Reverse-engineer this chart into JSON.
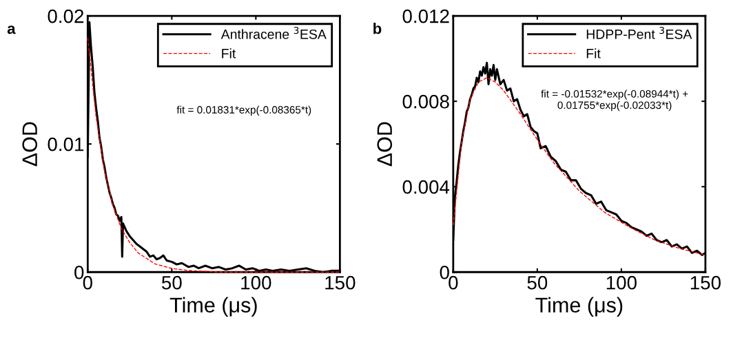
{
  "chart_data": [
    {
      "type": "line",
      "title": "a",
      "xlabel": "Time (μs)",
      "ylabel": "ΔOD",
      "xlim": [
        0,
        150
      ],
      "xticks": [
        0,
        50,
        100,
        150
      ],
      "ylim": [
        0,
        0.02
      ],
      "yticks": [
        0,
        0.01,
        0.02
      ],
      "legend": "top right",
      "grid": false,
      "annotations": [
        "fit = 0.01831*exp(-0.08365*t)"
      ],
      "series": [
        {
          "name": "Anthracene $^{3}$ESA",
          "color": "#000000",
          "line_style": "solid",
          "x": [
            0,
            1,
            2,
            3,
            4,
            5,
            6,
            7,
            8,
            9,
            10,
            11,
            12,
            13,
            14,
            15,
            16,
            17,
            18,
            19,
            20,
            20.5,
            21,
            23,
            25,
            27,
            29,
            31,
            33,
            35,
            37,
            39,
            41,
            43,
            45,
            47,
            50,
            53,
            56,
            60,
            63,
            66,
            70,
            74,
            78,
            82,
            86,
            90,
            94,
            98,
            102,
            106,
            110,
            115,
            120,
            125,
            130,
            135,
            140,
            145,
            150
          ],
          "values": [
            0.009,
            0.0195,
            0.0175,
            0.016,
            0.014,
            0.0128,
            0.0118,
            0.0105,
            0.0098,
            0.0088,
            0.0082,
            0.0074,
            0.0068,
            0.0062,
            0.0058,
            0.0053,
            0.005,
            0.0045,
            0.0044,
            0.004,
            0.0043,
            0.0012,
            0.0038,
            0.0032,
            0.0028,
            0.0025,
            0.0022,
            0.002,
            0.0018,
            0.0016,
            0.0012,
            0.0013,
            0.001,
            0.0011,
            0.0013,
            0.0009,
            0.0008,
            0.0006,
            0.0007,
            0.0004,
            0.0005,
            0.0003,
            0.0005,
            0.0003,
            0.0004,
            0.0002,
            0.0003,
            0.0005,
            0.0002,
            0.0003,
            0.0001,
            0.0002,
            0.0001,
            0.0002,
            0.0001,
            0.0002,
            0.0003,
            0.0001,
            0.0,
            0.0001,
            0.0001
          ]
        },
        {
          "name": "Fit",
          "color": "#ff0000",
          "line_style": "dashed",
          "x": [
            0,
            5,
            10,
            15,
            20,
            25,
            30,
            40,
            50,
            60,
            80,
            100,
            150
          ],
          "values": [
            0.0183,
            0.0121,
            0.0079,
            0.0052,
            0.0034,
            0.0023,
            0.0015,
            0.00064,
            0.00028,
            0.00012,
            0,
            0,
            0
          ]
        }
      ]
    },
    {
      "type": "line",
      "title": "b",
      "xlabel": "Time (μs)",
      "ylabel": "ΔOD",
      "xlim": [
        0,
        150
      ],
      "xticks": [
        0,
        50,
        100,
        150
      ],
      "ylim": [
        0,
        0.012
      ],
      "yticks": [
        0,
        0.004,
        0.008,
        0.012
      ],
      "legend": "top right",
      "grid": false,
      "annotations": [
        "fit = -0.01532*exp(-0.08944*t) +\n0.01755*exp(-0.02033*t)"
      ],
      "series": [
        {
          "name": "HDPP-Pent $^{3}$ESA",
          "color": "#000000",
          "line_style": "solid",
          "x": [
            0,
            1,
            2,
            3,
            4,
            5,
            6,
            7,
            8,
            9,
            10,
            11,
            12,
            13,
            14,
            15,
            16,
            17,
            18,
            19,
            20,
            21,
            22,
            23,
            24,
            25,
            26,
            28,
            30,
            32,
            34,
            36,
            38,
            40,
            42,
            44,
            46,
            48,
            50,
            52,
            55,
            58,
            61,
            64,
            67,
            70,
            73,
            76,
            79,
            82,
            85,
            88,
            91,
            94,
            97,
            100,
            103,
            106,
            109,
            112,
            115,
            118,
            121,
            124,
            127,
            130,
            133,
            136,
            139,
            142,
            145,
            148,
            150
          ],
          "values": [
            0.0015,
            0.0035,
            0.0042,
            0.005,
            0.0056,
            0.0061,
            0.0066,
            0.007,
            0.0075,
            0.0077,
            0.0081,
            0.0083,
            0.0086,
            0.0087,
            0.0091,
            0.0089,
            0.0094,
            0.0092,
            0.0096,
            0.0093,
            0.0098,
            0.0088,
            0.0095,
            0.0092,
            0.0097,
            0.009,
            0.0095,
            0.0088,
            0.009,
            0.0085,
            0.0086,
            0.008,
            0.0081,
            0.0076,
            0.0073,
            0.0074,
            0.0068,
            0.0066,
            0.0065,
            0.0058,
            0.0059,
            0.0054,
            0.0052,
            0.0048,
            0.0047,
            0.0043,
            0.0043,
            0.0039,
            0.0037,
            0.0036,
            0.0032,
            0.0033,
            0.0029,
            0.0028,
            0.0027,
            0.0024,
            0.0023,
            0.0021,
            0.002,
            0.0019,
            0.0017,
            0.0018,
            0.0015,
            0.0014,
            0.0015,
            0.0012,
            0.0013,
            0.0011,
            0.0012,
            0.0009,
            0.001,
            0.0008,
            0.0009
          ]
        },
        {
          "name": "Fit",
          "color": "#ff0000",
          "line_style": "dashed",
          "x": [
            0,
            5,
            10,
            15,
            20,
            25,
            30,
            40,
            50,
            60,
            75,
            90,
            105,
            120,
            135,
            150
          ],
          "values": [
            0.0022,
            0.0061,
            0.0081,
            0.0089,
            0.0091,
            0.0089,
            0.0085,
            0.0074,
            0.0062,
            0.0051,
            0.0038,
            0.0028,
            0.0021,
            0.0015,
            0.0011,
            0.0008
          ]
        }
      ]
    }
  ]
}
